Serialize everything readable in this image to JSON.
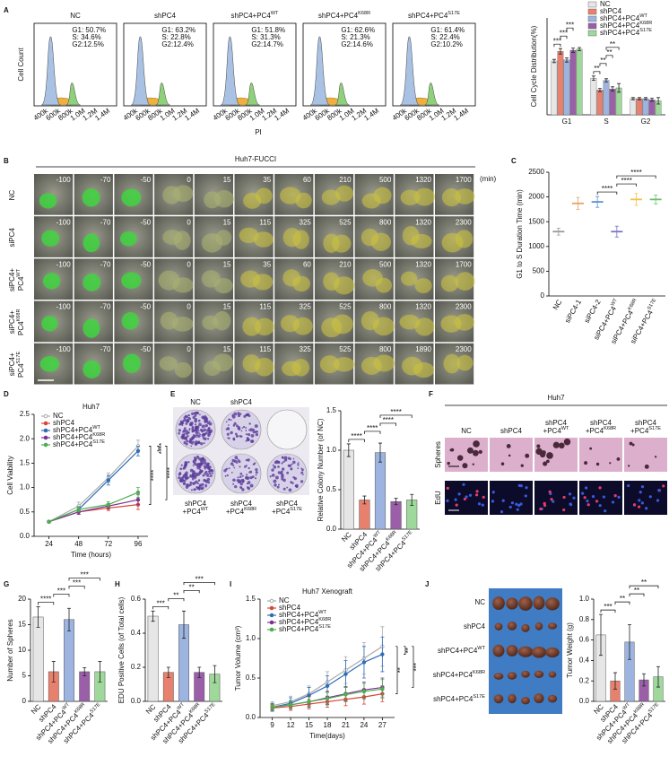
{
  "panel_labels": [
    "A",
    "B",
    "C",
    "D",
    "E",
    "F",
    "G",
    "H",
    "I",
    "J"
  ],
  "flow": {
    "ylabel": "Cell Count",
    "xlabel": "PI",
    "xticks": [
      "400k",
      "600k",
      "800k",
      "1.0M",
      "1.2M",
      "1.4M"
    ],
    "panels": [
      {
        "title": "NC",
        "stats": [
          "G1: 50.7%",
          "S: 34.6%",
          "G2:12.5%"
        ]
      },
      {
        "title": "shPC4",
        "stats": [
          "G1: 63.2%",
          "S: 22.8%",
          "G2:12.4%"
        ]
      },
      {
        "title": "shPC4+PC4WT",
        "stats": [
          "G1: 51.8%",
          "S: 31.3%",
          "G2:14.7%"
        ]
      },
      {
        "title": "shPC4+PC4K68R",
        "stats": [
          "G1: 62.6%",
          "S: 21.3%",
          "G2:14.6%"
        ]
      },
      {
        "title": "shPC4+PC4S17E",
        "stats": [
          "G1: 61.4%",
          "S: 22.4%",
          "G2:10.2%"
        ]
      }
    ]
  },
  "fucci": {
    "title": "Huh7-FUCCI",
    "unit": "(min)",
    "rows": [
      {
        "label": [
          "NC"
        ],
        "times": [
          -100,
          -70,
          -50,
          0,
          15,
          35,
          60,
          210,
          500,
          1320,
          1700
        ]
      },
      {
        "label": [
          "siPC4"
        ],
        "times": [
          -100,
          -70,
          -50,
          0,
          15,
          115,
          325,
          525,
          800,
          1320,
          2300
        ]
      },
      {
        "label": [
          "siPC4+",
          "PC4WT"
        ],
        "times": [
          -100,
          -70,
          -50,
          0,
          15,
          35,
          60,
          210,
          500,
          1320,
          1700
        ]
      },
      {
        "label": [
          "siPC4+",
          "PC4K68R"
        ],
        "times": [
          -100,
          -70,
          -50,
          0,
          15,
          115,
          325,
          525,
          800,
          1320,
          2300
        ]
      },
      {
        "label": [
          "siPC4+",
          "PC4S17E"
        ],
        "times": [
          -100,
          -70,
          -50,
          0,
          15,
          115,
          325,
          525,
          800,
          1890,
          2300
        ]
      }
    ]
  },
  "colony": {
    "top_labels": [
      "NC",
      "shPC4"
    ],
    "bottom_labels": [
      [
        "shPC4",
        "+PC4WT"
      ],
      [
        "shPC4",
        "+PC4K68R"
      ],
      [
        "shPC4",
        "+PC4S17E"
      ]
    ]
  },
  "spheres": {
    "title": "Huh7",
    "columns": [
      [
        "NC"
      ],
      [
        "shPC4"
      ],
      [
        "shPC4",
        "+PC4WT"
      ],
      [
        "shPC4",
        "+PC4K68R"
      ],
      [
        "shPC4",
        "+PC4S17E"
      ]
    ],
    "rows": [
      "Spheres",
      "EdU"
    ]
  },
  "xenograft": {
    "rows": [
      "NC",
      "shPC4",
      "shPC4+PC4WT",
      "shPC4+PC4K68R",
      "shPC4+PC4S17E"
    ]
  },
  "chart_data": [
    {
      "type": "bar",
      "ylabel": "Cell Cycle Distribution(%)",
      "categories": [
        "G1",
        "S",
        "G2"
      ],
      "ylim": [
        0,
        90
      ],
      "series": [
        {
          "name": "NC",
          "color": "#e6e6e6",
          "values": [
            50,
            34,
            15
          ],
          "errors": [
            1.5,
            2,
            1
          ]
        },
        {
          "name": "shPC4",
          "color": "#e8806e",
          "values": [
            59,
            23,
            15
          ],
          "errors": [
            2.5,
            1.5,
            1
          ]
        },
        {
          "name": "shPC4+PC4WT",
          "color": "#9db4e0",
          "values": [
            51,
            32,
            15
          ],
          "errors": [
            2,
            1.5,
            1
          ]
        },
        {
          "name": "shPC4+PC4K68R",
          "color": "#9a5fa8",
          "values": [
            60,
            24,
            14
          ],
          "errors": [
            2,
            2,
            1.5
          ]
        },
        {
          "name": "shPC4+PC4S17E",
          "color": "#9ed89a",
          "values": [
            61,
            25,
            13
          ],
          "errors": [
            1.5,
            4,
            3
          ]
        }
      ],
      "comparisons": [
        {
          "category": 0,
          "series": [
            0,
            1
          ],
          "label": "***"
        },
        {
          "category": 0,
          "series": [
            1,
            2
          ],
          "label": "***"
        },
        {
          "category": 0,
          "series": [
            2,
            3
          ],
          "label": "***"
        },
        {
          "category": 1,
          "series": [
            0,
            1
          ],
          "label": "**"
        },
        {
          "category": 1,
          "series": [
            1,
            2
          ],
          "label": "**"
        },
        {
          "category": 1,
          "series": [
            2,
            3
          ],
          "label": "**"
        },
        {
          "category": 1,
          "series": [
            2,
            4
          ],
          "label": "**"
        }
      ]
    },
    {
      "type": "dot",
      "ylabel": "G1 to S Duration Time (min)",
      "categories": [
        "NC",
        "siPC4-1",
        "siPC4-2",
        "siPC4+PC4WT",
        "siPC4+PC4K68R",
        "siPC4+PC4S17E"
      ],
      "values": [
        1300,
        1870,
        1900,
        1300,
        1950,
        1950
      ],
      "errors": [
        70,
        120,
        110,
        110,
        120,
        90
      ],
      "colors": [
        "#999999",
        "#e8a060",
        "#5b8fd5",
        "#7a74c8",
        "#f0c24a",
        "#6cc06c"
      ],
      "ylim": [
        0,
        2500
      ],
      "yticks": [
        0,
        500,
        1000,
        1500,
        2000,
        2500
      ],
      "comparisons": [
        {
          "pair": [
            2,
            3
          ],
          "label": "****"
        },
        {
          "pair": [
            3,
            4
          ],
          "label": "****"
        },
        {
          "pair": [
            3,
            5
          ],
          "label": "****"
        }
      ]
    },
    {
      "type": "line",
      "title": "Huh7",
      "xlabel": "Time (hours)",
      "ylabel": "Cell Viability",
      "x": [
        24,
        48,
        72,
        96
      ],
      "xlim": [
        12,
        104
      ],
      "xticks": [
        24,
        48,
        72,
        96
      ],
      "ylim": [
        0,
        2.5
      ],
      "yticks": [
        {
          "value": 0,
          "label": "0.0"
        },
        0.5,
        {
          "value": 1,
          "label": "1.0"
        },
        1.5,
        {
          "value": 2,
          "label": "2.0"
        },
        2.5
      ],
      "series": [
        {
          "name": "NC",
          "color": "#aaaaaa",
          "values": [
            0.3,
            0.62,
            1.2,
            1.85
          ],
          "errors": [
            0.02,
            0.08,
            0.1,
            0.12
          ]
        },
        {
          "name": "shPC4",
          "color": "#d9463a",
          "values": [
            0.3,
            0.5,
            0.58,
            0.65
          ],
          "errors": [
            0.02,
            0.05,
            0.05,
            0.1
          ]
        },
        {
          "name": "shPC4+PC4WT",
          "color": "#2f6db5",
          "values": [
            0.3,
            0.55,
            1.15,
            1.75
          ],
          "errors": [
            0.02,
            0.06,
            0.1,
            0.1
          ]
        },
        {
          "name": "shPC4+PC4K68R",
          "color": "#7b3294",
          "values": [
            0.3,
            0.5,
            0.62,
            0.75
          ],
          "errors": [
            0.02,
            0.05,
            0.05,
            0.1
          ]
        },
        {
          "name": "shPC4+PC4S17E",
          "color": "#4cae4c",
          "values": [
            0.3,
            0.55,
            0.65,
            0.9
          ],
          "errors": [
            0.02,
            0.05,
            0.06,
            0.1
          ]
        }
      ],
      "significance": [
        "****",
        "****",
        "****"
      ]
    },
    {
      "type": "bar",
      "ylabel": "Relative Colony Number (of NC)",
      "categories": [
        "NC",
        "shPC4",
        "shPC4+PC4WT",
        "shPC4+PC4K68R",
        "shPC4+PC4S17E"
      ],
      "values": [
        1.0,
        0.37,
        0.97,
        0.35,
        0.37
      ],
      "errors": [
        0.08,
        0.05,
        0.12,
        0.04,
        0.07
      ],
      "colors": [
        "#e6e6e6",
        "#e8806e",
        "#9db4e0",
        "#9a5fa8",
        "#9ed89a"
      ],
      "ylim": [
        0,
        1.5
      ],
      "yticks": [
        {
          "value": 0,
          "label": "0.0"
        },
        0.5,
        {
          "value": 1,
          "label": "1.0"
        },
        1.5
      ],
      "comparisons": [
        {
          "pair": [
            0,
            1
          ],
          "label": "****"
        },
        {
          "pair": [
            1,
            2
          ],
          "label": "****"
        },
        {
          "pair": [
            2,
            3
          ],
          "label": "****"
        },
        {
          "pair": [
            2,
            4
          ],
          "label": "****"
        }
      ]
    },
    {
      "type": "bar",
      "ylabel": "Number of Spheres",
      "categories": [
        "NC",
        "shPC4",
        "shPC4+PC4WT",
        "shPC4+PC4K68R",
        "shPC4+PC4S17E"
      ],
      "values": [
        16.5,
        5.8,
        16,
        5.8,
        5.8
      ],
      "errors": [
        2,
        2,
        2.2,
        0.8,
        2
      ],
      "colors": [
        "#e6e6e6",
        "#e8806e",
        "#9db4e0",
        "#9a5fa8",
        "#9ed89a"
      ],
      "ylim": [
        0,
        20
      ],
      "yticks": [
        0,
        5,
        10,
        15,
        20
      ],
      "comparisons": [
        {
          "pair": [
            0,
            1
          ],
          "label": "****"
        },
        {
          "pair": [
            1,
            2
          ],
          "label": "***"
        },
        {
          "pair": [
            2,
            3
          ],
          "label": "***"
        },
        {
          "pair": [
            2,
            4
          ],
          "label": "***"
        }
      ]
    },
    {
      "type": "bar",
      "ylabel": "EDU Positive Cells (of Total cells)",
      "categories": [
        "NC",
        "shPC4",
        "shPC4+PC4WT",
        "shPC4+PC4K68R",
        "shPC4+PC4S17E"
      ],
      "values": [
        0.5,
        0.17,
        0.45,
        0.17,
        0.16
      ],
      "errors": [
        0.03,
        0.03,
        0.08,
        0.03,
        0.05
      ],
      "colors": [
        "#e6e6e6",
        "#e8806e",
        "#9db4e0",
        "#9a5fa8",
        "#9ed89a"
      ],
      "ylim": [
        0,
        0.6
      ],
      "yticks": [
        {
          "value": 0,
          "label": "0.0"
        },
        0.2,
        0.4,
        0.6
      ],
      "comparisons": [
        {
          "pair": [
            0,
            1
          ],
          "label": "***"
        },
        {
          "pair": [
            1,
            2
          ],
          "label": "**"
        },
        {
          "pair": [
            2,
            3
          ],
          "label": "**"
        },
        {
          "pair": [
            2,
            4
          ],
          "label": "***"
        }
      ]
    },
    {
      "type": "line",
      "title": "Huh7 Xenograft",
      "xlabel": "Time(days)",
      "ylabel": "Tumor Volume (cm³)",
      "x": [
        9,
        12,
        15,
        18,
        21,
        24,
        27
      ],
      "xlim": [
        7,
        29
      ],
      "xticks": [
        9,
        12,
        15,
        18,
        21,
        24,
        27
      ],
      "ylim": [
        0,
        1.5
      ],
      "yticks": [
        {
          "value": 0,
          "label": "0.0"
        },
        0.5,
        {
          "value": 1,
          "label": "1.0"
        },
        1.5
      ],
      "series": [
        {
          "name": "NC",
          "color": "#aaaaaa",
          "values": [
            0.15,
            0.2,
            0.3,
            0.45,
            0.6,
            0.75,
            0.9
          ],
          "errors": [
            0.05,
            0.07,
            0.1,
            0.13,
            0.17,
            0.2,
            0.25
          ]
        },
        {
          "name": "shPC4",
          "color": "#d9463a",
          "values": [
            0.12,
            0.14,
            0.17,
            0.2,
            0.23,
            0.26,
            0.3
          ],
          "errors": [
            0.04,
            0.05,
            0.06,
            0.07,
            0.08,
            0.09,
            0.1
          ]
        },
        {
          "name": "shPC4+PC4WT",
          "color": "#2f6db5",
          "values": [
            0.13,
            0.18,
            0.28,
            0.4,
            0.55,
            0.7,
            0.8
          ],
          "errors": [
            0.05,
            0.07,
            0.1,
            0.13,
            0.17,
            0.2,
            0.22
          ]
        },
        {
          "name": "shPC4+PC4K68R",
          "color": "#7b3294",
          "values": [
            0.13,
            0.16,
            0.2,
            0.25,
            0.3,
            0.35,
            0.38
          ],
          "errors": [
            0.04,
            0.05,
            0.07,
            0.08,
            0.09,
            0.1,
            0.12
          ]
        },
        {
          "name": "shPC4+PC4S17E",
          "color": "#4cae4c",
          "values": [
            0.13,
            0.16,
            0.2,
            0.24,
            0.29,
            0.33,
            0.36
          ],
          "errors": [
            0.04,
            0.05,
            0.06,
            0.08,
            0.09,
            0.1,
            0.12
          ]
        }
      ],
      "significance": [
        "**",
        "**",
        "***"
      ]
    },
    {
      "type": "bar",
      "ylabel": "Tumor Weight (g)",
      "categories": [
        "NC",
        "shPC4",
        "shPC4+PC4WT",
        "shPC4+PC4K68R",
        "shPC4+PC4S17E"
      ],
      "values": [
        0.65,
        0.2,
        0.58,
        0.21,
        0.24
      ],
      "errors": [
        0.2,
        0.08,
        0.17,
        0.06,
        0.1
      ],
      "colors": [
        "#e6e6e6",
        "#e8806e",
        "#9db4e0",
        "#9a5fa8",
        "#9ed89a"
      ],
      "ylim": [
        0,
        1.0
      ],
      "yticks": [
        {
          "value": 0,
          "label": "0.0"
        },
        0.2,
        0.4,
        0.6,
        0.8,
        {
          "value": 1,
          "label": "1.0"
        }
      ],
      "comparisons": [
        {
          "pair": [
            0,
            1
          ],
          "label": "***"
        },
        {
          "pair": [
            1,
            2
          ],
          "label": "**"
        },
        {
          "pair": [
            2,
            3
          ],
          "label": "**"
        },
        {
          "pair": [
            2,
            4
          ],
          "label": "**"
        }
      ]
    }
  ]
}
